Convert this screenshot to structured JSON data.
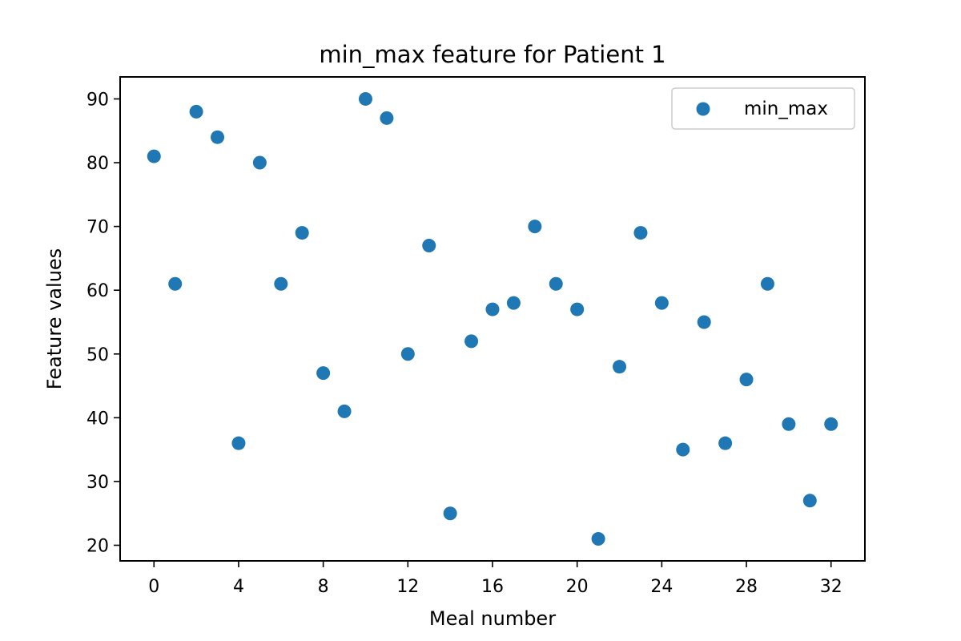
{
  "chart_data": {
    "type": "scatter",
    "title": "min_max feature for Patient 1",
    "xlabel": "Meal number",
    "ylabel": "Feature values",
    "xlim": [
      -1.6,
      33.6
    ],
    "ylim": [
      17.55,
      93.45
    ],
    "xticks": [
      0,
      4,
      8,
      12,
      16,
      20,
      24,
      28,
      32
    ],
    "yticks": [
      20,
      30,
      40,
      50,
      60,
      70,
      80,
      90
    ],
    "grid": false,
    "legend_position": "top-right",
    "color": "#1f77b4",
    "series": [
      {
        "name": "min_max",
        "x": [
          0,
          1,
          2,
          3,
          4,
          5,
          6,
          7,
          8,
          9,
          10,
          11,
          12,
          13,
          14,
          15,
          16,
          17,
          18,
          19,
          20,
          21,
          22,
          23,
          24,
          25,
          26,
          27,
          28,
          29,
          30,
          31,
          32
        ],
        "y": [
          81,
          61,
          88,
          84,
          36,
          80,
          61,
          69,
          47,
          41,
          90,
          87,
          50,
          67,
          25,
          52,
          57,
          58,
          70,
          61,
          57,
          21,
          48,
          69,
          58,
          35,
          55,
          36,
          46,
          61,
          39,
          27,
          39
        ]
      }
    ]
  }
}
